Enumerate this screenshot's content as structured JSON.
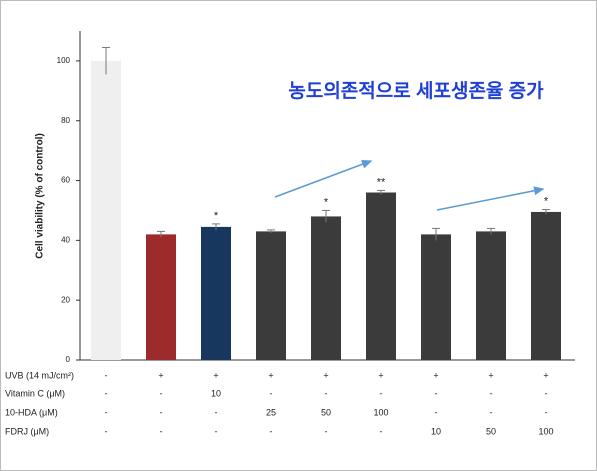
{
  "chart_data": {
    "type": "bar",
    "y_label": "Cell viability (% of control)",
    "annotation": "농도의존적으로 세포생존율 증가",
    "values": [
      100,
      42,
      44.5,
      43,
      48,
      56,
      42,
      43,
      49.5
    ],
    "errors": [
      4.5,
      1,
      1,
      0.5,
      2,
      0.7,
      2,
      1,
      0.8
    ],
    "colors": [
      "#efefef",
      "#9e2b2b",
      "#17375e",
      "#3b3b3b",
      "#3b3b3b",
      "#3b3b3b",
      "#3b3b3b",
      "#3b3b3b",
      "#3b3b3b"
    ],
    "significance": [
      null,
      null,
      "*",
      null,
      "*",
      "**",
      null,
      null,
      "*"
    ],
    "ylim": [
      0,
      110
    ],
    "yticks": [
      0,
      20,
      40,
      60,
      80,
      100
    ],
    "conditions": [
      {
        "name": "UVB (14 mJ/cm²)",
        "values": [
          "-",
          "+",
          "+",
          "+",
          "+",
          "+",
          "+",
          "+",
          "+"
        ]
      },
      {
        "name": "Vitamin C (μM)",
        "values": [
          "-",
          "-",
          "10",
          "-",
          "-",
          "-",
          "-",
          "-",
          "-"
        ]
      },
      {
        "name": "10-HDA (μM)",
        "values": [
          "-",
          "-",
          "-",
          "25",
          "50",
          "100",
          "-",
          "-",
          "-"
        ]
      },
      {
        "name": "FDRJ (μM)",
        "values": [
          "-",
          "-",
          "-",
          "-",
          "-",
          "-",
          "10",
          "50",
          "100"
        ]
      }
    ]
  }
}
